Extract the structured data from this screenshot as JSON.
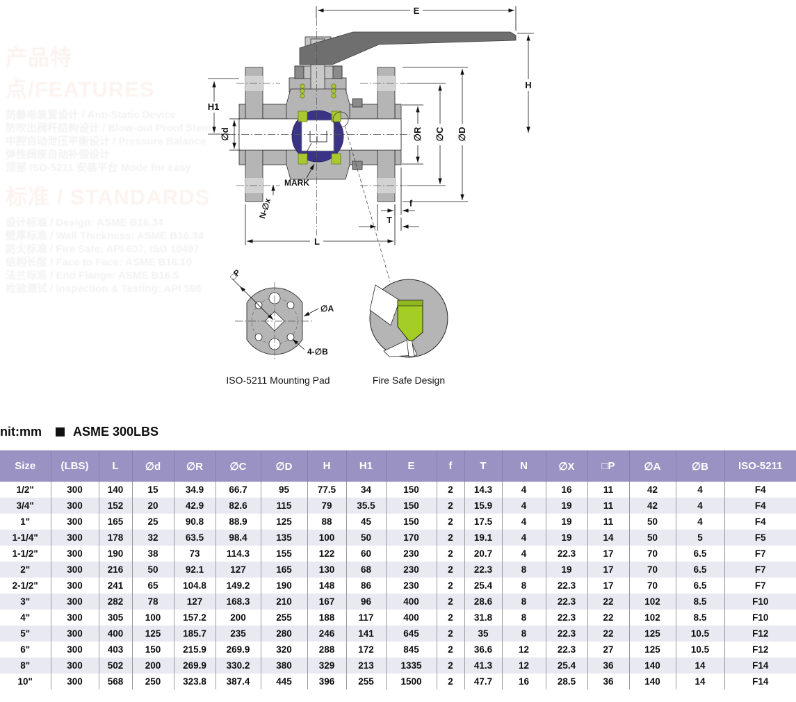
{
  "watermark": {
    "features": {
      "heading": "产品特点/FEATURES",
      "lines": [
        "防静电装置设计 / Anti-Static Device",
        "防吹出阀杆结构设计 / Blow-out Proof Stem",
        "中腔自动泄压平衡设计 / Pressure Balance",
        "弹性阀座自动补偿设计",
        "顶部 ISO-5211 安装平台 Mode for easy"
      ]
    },
    "standards": {
      "heading": "标准 / STANDARDS",
      "lines": [
        "设计标准 / Design: ASME B16.34",
        "壁厚标准 / Wall Thickness: ASME B16.34",
        "防火标准 / Fire Safe: API 607, ISO 10497",
        "结构长度 / Face to Face: ASME B16.10",
        "法兰标准 / End Flange: ASME B16.5",
        "检验测试 / Inspection & Testing: API 598"
      ]
    }
  },
  "drawing": {
    "labels": {
      "e": "E",
      "h": "H",
      "h1": "H1",
      "od_small": "∅d",
      "o_r": "∅R",
      "o_c": "∅C",
      "o_d": "∅D",
      "mark": "MARK",
      "n_ox": "N-∅x",
      "f": "f",
      "t": "T",
      "l": "L"
    },
    "iso_detail": {
      "caption": "ISO-5211 Mounting Pad",
      "dim_p": "□P",
      "dim_a": "∅A",
      "dim_b": "4-∅B"
    },
    "fire_detail": {
      "caption": "Fire Safe Design"
    },
    "colors": {
      "body_gray": "#b5b5b5",
      "handle_gray": "#6f6f6f",
      "ball_blue": "#3b3486",
      "seat_green": "#a9c92f"
    }
  },
  "unit_bar": {
    "unit": "nit:mm",
    "spec": "ASME 300LBS"
  },
  "table": {
    "columns": [
      "Size",
      "(LBS)",
      "L",
      "∅d",
      "∅R",
      "∅C",
      "∅D",
      "H",
      "H1",
      "E",
      "f",
      "T",
      "N",
      "∅X",
      "□P",
      "∅A",
      "∅B",
      "ISO-5211"
    ],
    "rows": [
      [
        "1/2\"",
        "300",
        "140",
        "15",
        "34.9",
        "66.7",
        "95",
        "77.5",
        "34",
        "150",
        "2",
        "14.3",
        "4",
        "16",
        "11",
        "42",
        "4",
        "F4"
      ],
      [
        "3/4\"",
        "300",
        "152",
        "20",
        "42.9",
        "82.6",
        "115",
        "79",
        "35.5",
        "150",
        "2",
        "15.9",
        "4",
        "19",
        "11",
        "42",
        "4",
        "F4"
      ],
      [
        "1\"",
        "300",
        "165",
        "25",
        "90.8",
        "88.9",
        "125",
        "88",
        "45",
        "150",
        "2",
        "17.5",
        "4",
        "19",
        "11",
        "50",
        "4",
        "F4"
      ],
      [
        "1-1/4\"",
        "300",
        "178",
        "32",
        "63.5",
        "98.4",
        "135",
        "100",
        "50",
        "170",
        "2",
        "19.1",
        "4",
        "19",
        "14",
        "50",
        "5",
        "F5"
      ],
      [
        "1-1/2\"",
        "300",
        "190",
        "38",
        "73",
        "114.3",
        "155",
        "122",
        "60",
        "230",
        "2",
        "20.7",
        "4",
        "22.3",
        "17",
        "70",
        "6.5",
        "F7"
      ],
      [
        "2\"",
        "300",
        "216",
        "50",
        "92.1",
        "127",
        "165",
        "130",
        "68",
        "230",
        "2",
        "22.3",
        "8",
        "19",
        "17",
        "70",
        "6.5",
        "F7"
      ],
      [
        "2-1/2\"",
        "300",
        "241",
        "65",
        "104.8",
        "149.2",
        "190",
        "148",
        "86",
        "230",
        "2",
        "25.4",
        "8",
        "22.3",
        "17",
        "70",
        "6.5",
        "F7"
      ],
      [
        "3\"",
        "300",
        "282",
        "78",
        "127",
        "168.3",
        "210",
        "167",
        "96",
        "400",
        "2",
        "28.6",
        "8",
        "22.3",
        "22",
        "102",
        "8.5",
        "F10"
      ],
      [
        "4\"",
        "300",
        "305",
        "100",
        "157.2",
        "200",
        "255",
        "188",
        "117",
        "400",
        "2",
        "31.8",
        "8",
        "22.3",
        "22",
        "102",
        "8.5",
        "F10"
      ],
      [
        "5\"",
        "300",
        "400",
        "125",
        "185.7",
        "235",
        "280",
        "246",
        "141",
        "645",
        "2",
        "35",
        "8",
        "22.3",
        "22",
        "125",
        "10.5",
        "F12"
      ],
      [
        "6\"",
        "300",
        "403",
        "150",
        "215.9",
        "269.9",
        "320",
        "288",
        "172",
        "845",
        "2",
        "36.6",
        "12",
        "22.3",
        "27",
        "125",
        "10.5",
        "F12"
      ],
      [
        "8\"",
        "300",
        "502",
        "200",
        "269.9",
        "330.2",
        "380",
        "329",
        "213",
        "1335",
        "2",
        "41.3",
        "12",
        "25.4",
        "36",
        "140",
        "14",
        "F14"
      ],
      [
        "10\"",
        "300",
        "568",
        "250",
        "323.8",
        "387.4",
        "445",
        "396",
        "255",
        "1500",
        "2",
        "47.7",
        "16",
        "28.5",
        "36",
        "140",
        "14",
        "F14"
      ]
    ]
  }
}
